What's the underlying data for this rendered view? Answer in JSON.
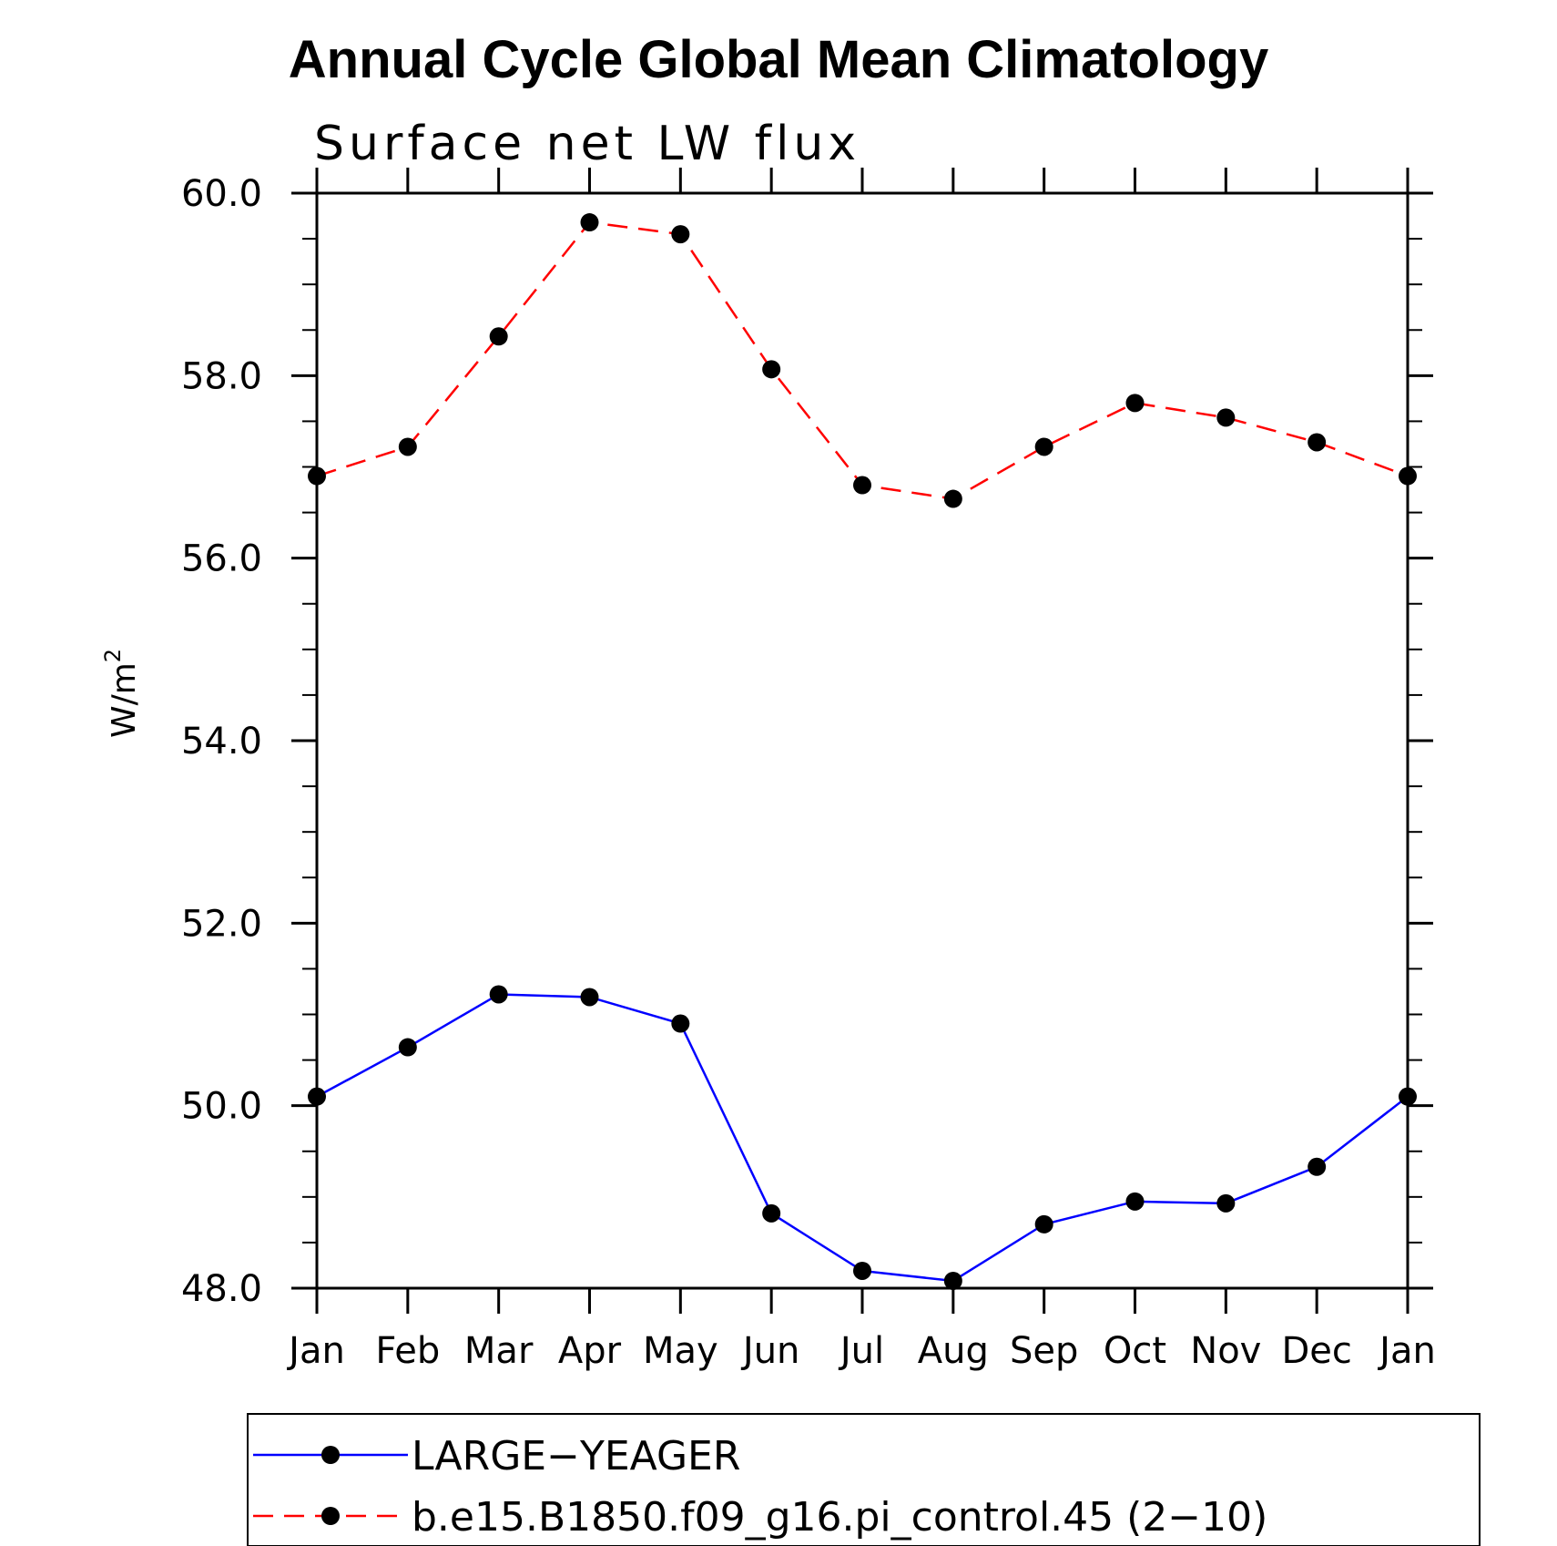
{
  "chart_data": {
    "type": "line",
    "title": "Annual Cycle Global Mean Climatology",
    "subtitle": "Surface net LW flux",
    "ylabel": "W/m",
    "ylabel_superscript": "2",
    "xlabel": "",
    "categories": [
      "Jan",
      "Feb",
      "Mar",
      "Apr",
      "May",
      "Jun",
      "Jul",
      "Aug",
      "Sep",
      "Oct",
      "Nov",
      "Dec",
      "Jan"
    ],
    "ylim": [
      48.0,
      60.0
    ],
    "yticks": [
      "48.0",
      "50.0",
      "52.0",
      "54.0",
      "56.0",
      "58.0",
      "60.0"
    ],
    "series": [
      {
        "name": "LARGE−YEAGER",
        "color": "#0000ff",
        "dash": "solid",
        "marker": "circle",
        "values": [
          50.1,
          50.64,
          51.22,
          51.19,
          50.9,
          48.82,
          48.19,
          48.08,
          48.7,
          48.95,
          48.93,
          49.33,
          50.1
        ]
      },
      {
        "name": "b.e15.B1850.f09_g16.pi_control.45 (2−10)",
        "color": "#ff0000",
        "dash": "dashed",
        "marker": "circle",
        "values": [
          56.9,
          57.22,
          58.43,
          59.68,
          59.55,
          58.07,
          56.8,
          56.65,
          57.22,
          57.7,
          57.54,
          57.27,
          56.9
        ]
      }
    ],
    "grid": false,
    "legend_position": "bottom"
  }
}
